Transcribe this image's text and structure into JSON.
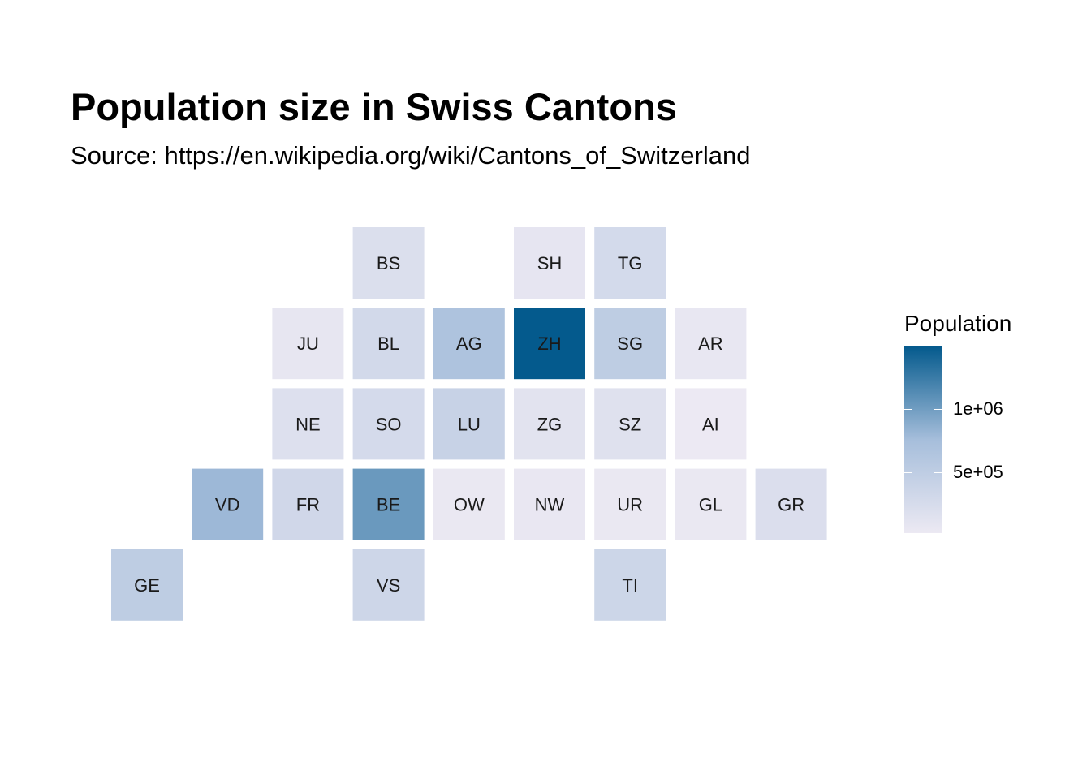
{
  "header": {
    "title": "Population size in Swiss Cantons",
    "subtitle": "Source: https://en.wikipedia.org/wiki/Cantons_of_Switzerland"
  },
  "chart_data": {
    "type": "heatmap",
    "title": "Population size in Swiss Cantons",
    "subtitle": "Source: https://en.wikipedia.org/wiki/Cantons_of_Switzerland",
    "value_label": "Population",
    "grid": false,
    "legend_placement": "right",
    "color_scale": {
      "low_color": "#ece9f3",
      "mid_color": "#a6bedb",
      "high_color": "#045a8d",
      "min": 16000,
      "max": 1500000
    },
    "legend": {
      "title": "Population",
      "ticks": [
        {
          "label": "1e+06",
          "value": 1000000
        },
        {
          "label": "5e+05",
          "value": 500000
        }
      ]
    },
    "cells": [
      {
        "code": "BS",
        "col": 4,
        "row": 1,
        "population": 195000
      },
      {
        "code": "SH",
        "col": 6,
        "row": 1,
        "population": 82000
      },
      {
        "code": "TG",
        "col": 7,
        "row": 1,
        "population": 276000
      },
      {
        "code": "JU",
        "col": 3,
        "row": 2,
        "population": 73000
      },
      {
        "code": "BL",
        "col": 4,
        "row": 2,
        "population": 288000
      },
      {
        "code": "AG",
        "col": 5,
        "row": 2,
        "population": 678000
      },
      {
        "code": "ZH",
        "col": 6,
        "row": 2,
        "population": 1504000
      },
      {
        "code": "SG",
        "col": 7,
        "row": 2,
        "population": 507000
      },
      {
        "code": "AR",
        "col": 8,
        "row": 2,
        "population": 55000
      },
      {
        "code": "NE",
        "col": 3,
        "row": 3,
        "population": 177000
      },
      {
        "code": "SO",
        "col": 4,
        "row": 3,
        "population": 273000
      },
      {
        "code": "LU",
        "col": 5,
        "row": 3,
        "population": 409000
      },
      {
        "code": "ZG",
        "col": 6,
        "row": 3,
        "population": 126000
      },
      {
        "code": "SZ",
        "col": 7,
        "row": 3,
        "population": 159000
      },
      {
        "code": "AI",
        "col": 8,
        "row": 3,
        "population": 16000
      },
      {
        "code": "VD",
        "col": 2,
        "row": 4,
        "population": 799000
      },
      {
        "code": "FR",
        "col": 3,
        "row": 4,
        "population": 318000
      },
      {
        "code": "BE",
        "col": 4,
        "row": 4,
        "population": 1034000
      },
      {
        "code": "OW",
        "col": 5,
        "row": 4,
        "population": 37000
      },
      {
        "code": "NW",
        "col": 6,
        "row": 4,
        "population": 43000
      },
      {
        "code": "UR",
        "col": 7,
        "row": 4,
        "population": 36000
      },
      {
        "code": "GL",
        "col": 8,
        "row": 4,
        "population": 40000
      },
      {
        "code": "GR",
        "col": 9,
        "row": 4,
        "population": 198000
      },
      {
        "code": "GE",
        "col": 1,
        "row": 5,
        "population": 499000
      },
      {
        "code": "VS",
        "col": 4,
        "row": 5,
        "population": 343000
      },
      {
        "code": "TI",
        "col": 7,
        "row": 5,
        "population": 351000
      }
    ]
  }
}
